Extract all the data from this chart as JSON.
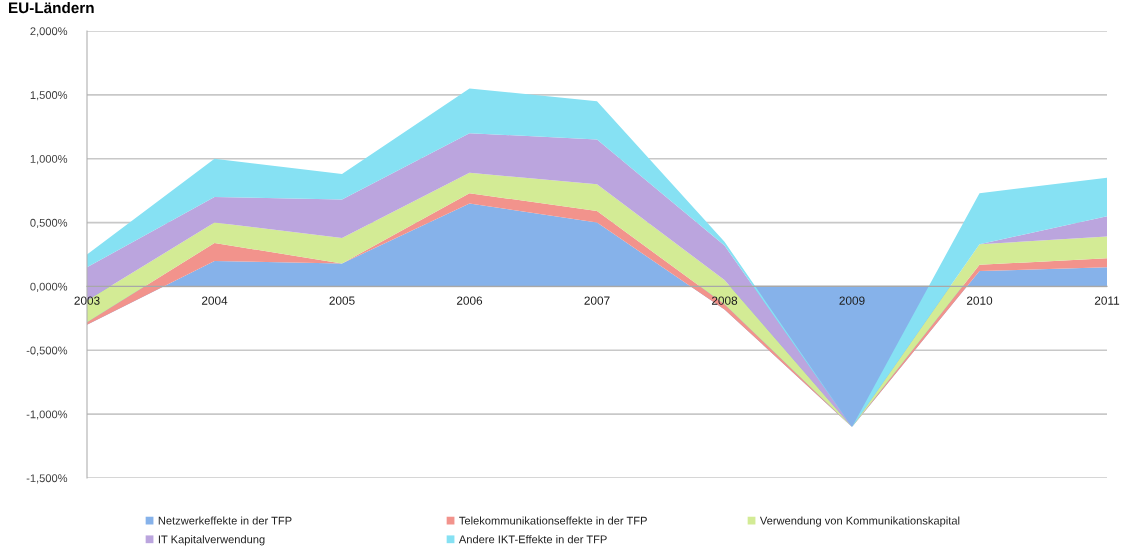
{
  "chart_data": {
    "type": "area",
    "title": "EU-Ländern",
    "stacked": true,
    "categories": [
      "2003",
      "2004",
      "2005",
      "2006",
      "2007",
      "2008",
      "2009",
      "2010",
      "2011"
    ],
    "series": [
      {
        "name": "Netzwerkeffekte in der TFP",
        "color": "#86b2ea",
        "values": [
          -0.3,
          0.2,
          0.18,
          0.65,
          0.5,
          -0.18,
          -1.1,
          0.12,
          0.15
        ]
      },
      {
        "name": "Telekommunikationseffekte in der TFP",
        "color": "#f2938c",
        "values": [
          0.02,
          0.14,
          0.0,
          0.08,
          0.09,
          0.04,
          0.0,
          0.05,
          0.07
        ]
      },
      {
        "name": "Verwendung von Kommunikationskapital",
        "color": "#d3eb95",
        "values": [
          0.17,
          0.16,
          0.2,
          0.16,
          0.21,
          0.19,
          0.0,
          0.16,
          0.17
        ]
      },
      {
        "name": "IT Kapitalverwendung",
        "color": "#bba5de",
        "values": [
          0.26,
          0.2,
          0.3,
          0.31,
          0.35,
          0.27,
          0.0,
          0.0,
          0.16
        ]
      },
      {
        "name": "Andere IKT-Effekte in der TFP",
        "color": "#86e1f3",
        "values": [
          0.1,
          0.3,
          0.2,
          0.35,
          0.3,
          0.03,
          0.0,
          0.4,
          0.3
        ]
      }
    ],
    "ylim": [
      -1.5,
      2.0
    ],
    "yticks": [
      {
        "value": -1.5,
        "label": "-1,500%"
      },
      {
        "value": -1.0,
        "label": "-1,000%"
      },
      {
        "value": -0.5,
        "label": "-0,500%"
      },
      {
        "value": 0,
        "label": "0,000%"
      },
      {
        "value": 0.5,
        "label": "0,500%"
      },
      {
        "value": 1.0,
        "label": "1,000%"
      },
      {
        "value": 1.5,
        "label": "1,500%"
      },
      {
        "value": 2.0,
        "label": "2,000%"
      }
    ],
    "grid": "y",
    "legend": "bottom"
  }
}
